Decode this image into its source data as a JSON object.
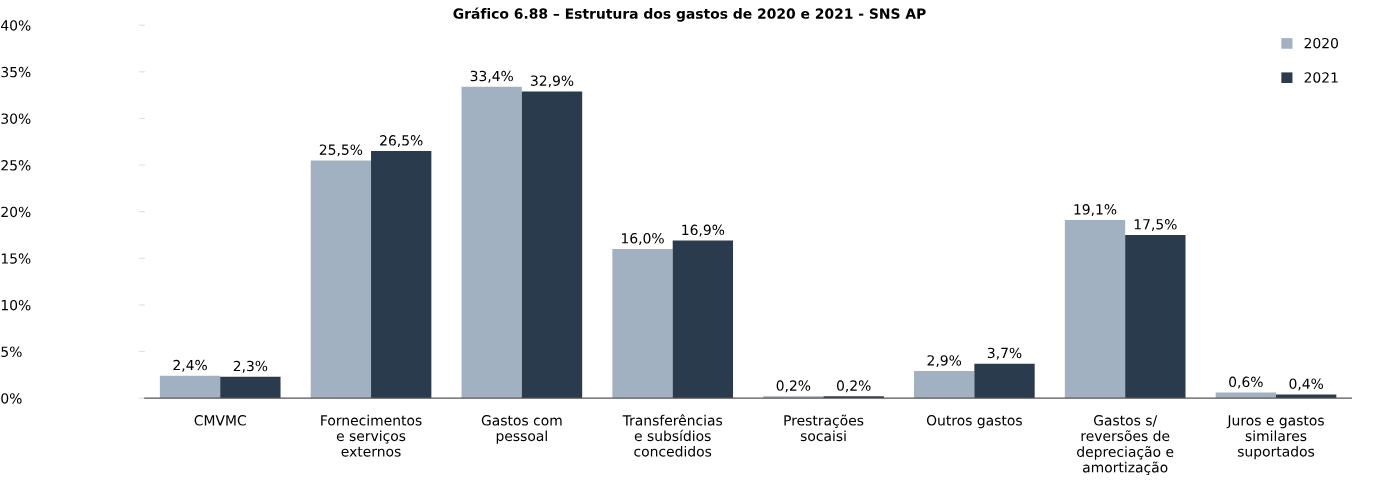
{
  "chart_data": {
    "type": "bar",
    "title": "Gráfico 6.88 – Estrutura dos gastos de 2020 e 2021 - SNS AP",
    "categories": [
      "CMVMC",
      "Fornecimentos\ne serviços\nexternos",
      "Gastos com\npessoal",
      "Transferências\ne subsídios\nconcedidos",
      "Prestrações\nsocaisi",
      "Outros gastos",
      "Gastos s/\nreversões de\ndepreciação e\namortização",
      "Juros e gastos\nsimilares\nsuportados"
    ],
    "series": [
      {
        "name": "2020",
        "color": "#a2b1c1",
        "values": [
          2.4,
          25.5,
          33.4,
          16.0,
          0.2,
          2.9,
          19.1,
          0.6
        ],
        "value_labels": [
          "2,4%",
          "25,5%",
          "33,4%",
          "16,0%",
          "0,2%",
          "2,9%",
          "19,1%",
          "0,6%"
        ]
      },
      {
        "name": "2021",
        "color": "#2a3b4d",
        "values": [
          2.3,
          26.5,
          32.9,
          16.9,
          0.2,
          3.7,
          17.5,
          0.4
        ],
        "value_labels": [
          "2,3%",
          "26,5%",
          "32,9%",
          "16,9%",
          "0,2%",
          "3,7%",
          "17,5%",
          "0,4%"
        ]
      }
    ],
    "ylim": [
      0,
      40
    ],
    "yticks": [
      {
        "value": 0,
        "label": "0%"
      },
      {
        "value": 5,
        "label": "5%"
      },
      {
        "value": 10,
        "label": "10%"
      },
      {
        "value": 15,
        "label": "15%"
      },
      {
        "value": 20,
        "label": "20%"
      },
      {
        "value": 25,
        "label": "25%"
      },
      {
        "value": 30,
        "label": "30%"
      },
      {
        "value": 35,
        "label": "35%"
      },
      {
        "value": 40,
        "label": "40%"
      }
    ],
    "grid": false,
    "legend": "top right"
  }
}
